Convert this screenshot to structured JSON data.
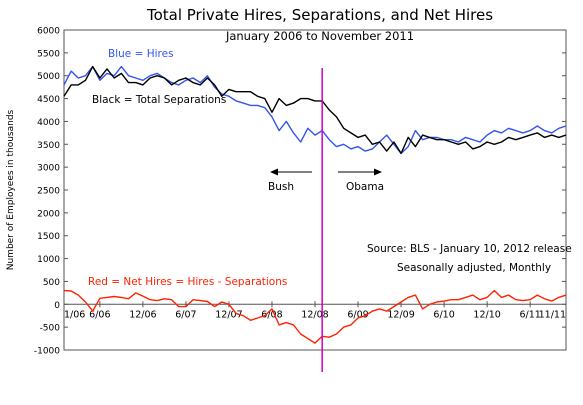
{
  "chart_data": {
    "type": "line",
    "title": "Total Private Hires, Separations, and Net Hires",
    "subtitle": "January 2006 to November 2011",
    "ylabel": "Number of Employees in thousands",
    "xlabel": "",
    "ylim": [
      -1000,
      6000
    ],
    "yticks": [
      -1000,
      -500,
      0,
      500,
      1000,
      1500,
      2000,
      2500,
      3000,
      3500,
      4000,
      4500,
      5000,
      5500,
      6000
    ],
    "x_tick_labels": [
      "1/06",
      "6/06",
      "12/06",
      "6/07",
      "12/07",
      "6/08",
      "12/08",
      "6/09",
      "12/09",
      "6/10",
      "12/10",
      "6/11",
      "11/11"
    ],
    "x_tick_months": [
      0,
      5,
      11,
      17,
      23,
      29,
      35,
      41,
      47,
      53,
      59,
      65,
      70
    ],
    "grid": false,
    "series": [
      {
        "name": "Hires",
        "color": "#3355ee",
        "values": [
          4800,
          5100,
          4950,
          5000,
          5200,
          4900,
          5050,
          5000,
          5200,
          5000,
          4950,
          4900,
          5000,
          5050,
          4950,
          4850,
          4800,
          4900,
          4950,
          4850,
          5000,
          4750,
          4600,
          4550,
          4450,
          4400,
          4350,
          4350,
          4300,
          4100,
          3800,
          4000,
          3750,
          3550,
          3850,
          3700,
          3800,
          3600,
          3450,
          3500,
          3400,
          3450,
          3350,
          3400,
          3550,
          3700,
          3500,
          3300,
          3450,
          3800,
          3600,
          3650,
          3650,
          3600,
          3600,
          3550,
          3650,
          3600,
          3550,
          3700,
          3800,
          3750,
          3850,
          3800,
          3750,
          3800,
          3900,
          3800,
          3750,
          3850,
          3900
        ]
      },
      {
        "name": "Total Separations",
        "color": "#000000",
        "values": [
          4550,
          4800,
          4800,
          4900,
          5200,
          4950,
          5150,
          4950,
          5050,
          4850,
          4850,
          4800,
          4950,
          5000,
          4950,
          4800,
          4900,
          4950,
          4850,
          4800,
          4950,
          4800,
          4550,
          4700,
          4650,
          4650,
          4650,
          4550,
          4500,
          4200,
          4500,
          4350,
          4400,
          4500,
          4500,
          4450,
          4450,
          4250,
          4100,
          3850,
          3750,
          3650,
          3700,
          3500,
          3550,
          3350,
          3550,
          3300,
          3650,
          3450,
          3700,
          3650,
          3600,
          3600,
          3550,
          3500,
          3550,
          3400,
          3450,
          3550,
          3500,
          3550,
          3650,
          3600,
          3650,
          3700,
          3750,
          3650,
          3700,
          3650,
          3700
        ]
      },
      {
        "name": "Net Hires",
        "color": "#ff2200",
        "values": [
          300,
          290,
          200,
          50,
          -150,
          130,
          150,
          170,
          150,
          120,
          250,
          180,
          100,
          80,
          120,
          100,
          -50,
          -50,
          100,
          80,
          60,
          -50,
          50,
          0,
          -200,
          -250,
          -350,
          -300,
          -250,
          -100,
          -450,
          -400,
          -450,
          -650,
          -750,
          -850,
          -700,
          -720,
          -650,
          -500,
          -450,
          -300,
          -250,
          -150,
          -100,
          -150,
          -50,
          50,
          150,
          200,
          -100,
          0,
          50,
          70,
          100,
          100,
          150,
          200,
          100,
          150,
          300,
          150,
          200,
          100,
          80,
          100,
          200,
          120,
          70,
          150,
          200
        ]
      }
    ],
    "legend_labels": {
      "hires": "Blue = Hires",
      "separations": "Black = Total Separations",
      "net": "Red = Net Hires = Hires - Separations"
    },
    "marker": {
      "month": 36,
      "color": "#cc00cc"
    },
    "annotations": {
      "bush": "Bush",
      "obama": "Obama",
      "source": "Source:  BLS - January 10, 2012 release",
      "note": "Seasonally adjusted, Monthly"
    }
  }
}
